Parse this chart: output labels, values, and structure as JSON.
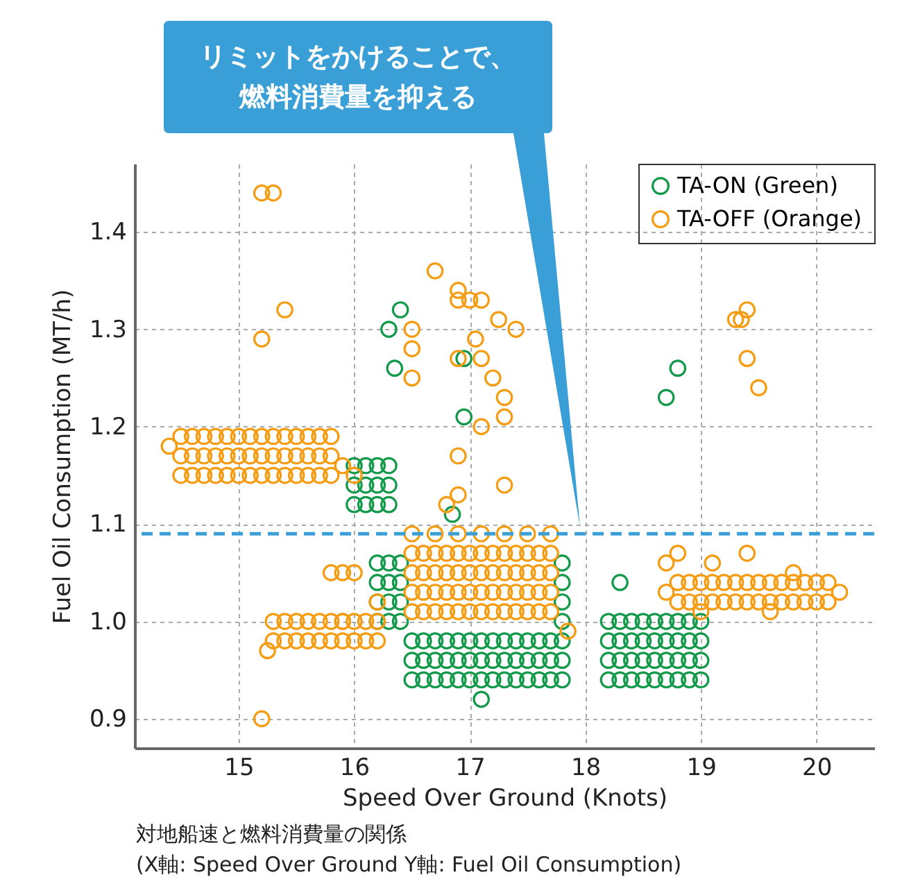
{
  "chart_data": {
    "type": "scatter",
    "xlabel": "Speed Over Ground (Knots)",
    "ylabel": "Fuel Oil Consumption (MT/h)",
    "annotations": [
      "リミットをかけることで、",
      "燃料消費量を抑える",
      "対地船速と燃料消費量の関係",
      "(X軸: Speed Over Ground  Y軸: Fuel Oil Consumption)"
    ],
    "xlim": [
      14.1,
      20.5
    ],
    "ylim": [
      0.87,
      1.47
    ],
    "xticks": [
      15,
      16,
      17,
      18,
      19,
      20
    ],
    "yticks": [
      0.9,
      {
        "value": 1,
        "label": "1.0"
      },
      1.1,
      1.2,
      1.3,
      1.4
    ],
    "grid": true,
    "legend": "top right",
    "marker": "circle",
    "ref_lines": [
      {
        "axis": "y",
        "value": 1.09,
        "color": "#3a9fd6",
        "line_style": "dashed"
      }
    ],
    "series": [
      {
        "name": "TA-ON (Green)",
        "color": "#12994a",
        "x": [
          16.0,
          16.1,
          16.2,
          16.3,
          16.0,
          16.1,
          16.2,
          16.3,
          16.0,
          16.1,
          16.2,
          16.3,
          16.5,
          16.6,
          16.7,
          16.8,
          16.9,
          17.0,
          17.1,
          17.2,
          17.3,
          17.4,
          17.5,
          17.6,
          17.7,
          17.8,
          16.5,
          16.6,
          16.7,
          16.8,
          16.9,
          17.0,
          17.1,
          17.2,
          17.3,
          17.4,
          17.5,
          17.6,
          17.7,
          17.8,
          16.5,
          16.6,
          16.7,
          16.8,
          16.9,
          17.0,
          17.1,
          17.2,
          17.3,
          17.4,
          17.5,
          17.6,
          17.7,
          17.8,
          16.2,
          16.3,
          16.4,
          16.2,
          16.3,
          16.4,
          16.2,
          16.3,
          16.4,
          16.2,
          16.3,
          16.4,
          17.8,
          17.8,
          17.8,
          17.8,
          18.2,
          18.3,
          18.4,
          18.5,
          18.6,
          18.7,
          18.8,
          18.9,
          19.0,
          18.2,
          18.3,
          18.4,
          18.5,
          18.6,
          18.7,
          18.8,
          18.9,
          19.0,
          18.2,
          18.3,
          18.4,
          18.5,
          18.6,
          18.7,
          18.8,
          18.9,
          19.0,
          18.2,
          18.3,
          18.4,
          18.5,
          18.6,
          18.7,
          18.8,
          18.9,
          19.0,
          16.3,
          16.4,
          16.35,
          16.95,
          16.95,
          16.85,
          18.7,
          18.8,
          18.3,
          17.1
        ],
        "values": [
          1.12,
          1.12,
          1.12,
          1.12,
          1.14,
          1.14,
          1.14,
          1.14,
          1.16,
          1.16,
          1.16,
          1.16,
          0.94,
          0.94,
          0.94,
          0.94,
          0.94,
          0.94,
          0.94,
          0.94,
          0.94,
          0.94,
          0.94,
          0.94,
          0.94,
          0.94,
          0.96,
          0.96,
          0.96,
          0.96,
          0.96,
          0.96,
          0.96,
          0.96,
          0.96,
          0.96,
          0.96,
          0.96,
          0.96,
          0.96,
          0.98,
          0.98,
          0.98,
          0.98,
          0.98,
          0.98,
          0.98,
          0.98,
          0.98,
          0.98,
          0.98,
          0.98,
          0.98,
          0.98,
          1.0,
          1.0,
          1.0,
          1.02,
          1.02,
          1.02,
          1.04,
          1.04,
          1.04,
          1.06,
          1.06,
          1.06,
          1.0,
          1.02,
          1.04,
          1.06,
          0.94,
          0.94,
          0.94,
          0.94,
          0.94,
          0.94,
          0.94,
          0.94,
          0.94,
          0.96,
          0.96,
          0.96,
          0.96,
          0.96,
          0.96,
          0.96,
          0.96,
          0.96,
          0.98,
          0.98,
          0.98,
          0.98,
          0.98,
          0.98,
          0.98,
          0.98,
          0.98,
          1.0,
          1.0,
          1.0,
          1.0,
          1.0,
          1.0,
          1.0,
          1.0,
          1.0,
          1.3,
          1.32,
          1.26,
          1.27,
          1.21,
          1.11,
          1.23,
          1.26,
          1.04,
          0.92
        ]
      },
      {
        "name": "TA-OFF (Orange)",
        "color": "#f59c12",
        "x": [
          14.5,
          14.6,
          14.7,
          14.8,
          14.9,
          15.0,
          15.1,
          15.2,
          15.3,
          15.4,
          15.5,
          15.6,
          15.7,
          15.8,
          14.5,
          14.6,
          14.7,
          14.8,
          14.9,
          15.0,
          15.1,
          15.2,
          15.3,
          15.4,
          15.5,
          15.6,
          15.7,
          15.8,
          14.5,
          14.6,
          14.7,
          14.8,
          14.9,
          15.0,
          15.1,
          15.2,
          15.3,
          15.4,
          15.5,
          15.6,
          15.7,
          15.8,
          14.4,
          15.9,
          16.0,
          15.3,
          15.4,
          15.5,
          15.6,
          15.7,
          15.8,
          15.9,
          16.0,
          16.1,
          16.2,
          15.3,
          15.4,
          15.5,
          15.6,
          15.7,
          15.8,
          15.9,
          16.0,
          16.1,
          16.2,
          15.25,
          16.5,
          16.6,
          16.7,
          16.8,
          16.9,
          17.0,
          17.1,
          17.2,
          17.3,
          17.4,
          17.5,
          17.6,
          17.7,
          16.5,
          16.6,
          16.7,
          16.8,
          16.9,
          17.0,
          17.1,
          17.2,
          17.3,
          17.4,
          17.5,
          17.6,
          17.7,
          16.5,
          16.6,
          16.7,
          16.8,
          16.9,
          17.0,
          17.1,
          17.2,
          17.3,
          17.4,
          17.5,
          17.6,
          17.7,
          16.5,
          16.6,
          16.7,
          16.8,
          16.9,
          17.0,
          17.1,
          17.2,
          17.3,
          17.4,
          17.5,
          17.6,
          17.7,
          16.5,
          16.7,
          16.9,
          17.1,
          17.3,
          17.5,
          17.7,
          18.8,
          18.9,
          19.0,
          19.1,
          19.2,
          19.3,
          19.4,
          19.5,
          19.6,
          19.7,
          19.8,
          19.9,
          20.0,
          20.1,
          18.8,
          18.9,
          19.0,
          19.1,
          19.2,
          19.3,
          19.4,
          19.5,
          19.6,
          19.7,
          19.8,
          19.9,
          20.0,
          20.1,
          18.7,
          20.2,
          19.0,
          19.6,
          19.8,
          15.2,
          15.3,
          15.4,
          15.2,
          15.2,
          16.7,
          16.9,
          16.9,
          17.0,
          17.1,
          17.25,
          17.4,
          16.5,
          16.5,
          16.5,
          16.9,
          17.05,
          17.1,
          17.2,
          17.3,
          17.3,
          16.9,
          17.1,
          16.8,
          16.9,
          17.3,
          19.4,
          19.35,
          19.3,
          19.4,
          19.5,
          18.7,
          18.8,
          19.1,
          19.4,
          17.85,
          15.8,
          15.9,
          16.0,
          15.9,
          16.2
        ],
        "values": [
          1.15,
          1.15,
          1.15,
          1.15,
          1.15,
          1.15,
          1.15,
          1.15,
          1.15,
          1.15,
          1.15,
          1.15,
          1.15,
          1.15,
          1.17,
          1.17,
          1.17,
          1.17,
          1.17,
          1.17,
          1.17,
          1.17,
          1.17,
          1.17,
          1.17,
          1.17,
          1.17,
          1.17,
          1.19,
          1.19,
          1.19,
          1.19,
          1.19,
          1.19,
          1.19,
          1.19,
          1.19,
          1.19,
          1.19,
          1.19,
          1.19,
          1.19,
          1.18,
          1.16,
          1.15,
          0.98,
          0.98,
          0.98,
          0.98,
          0.98,
          0.98,
          0.98,
          0.98,
          0.98,
          0.98,
          1.0,
          1.0,
          1.0,
          1.0,
          1.0,
          1.0,
          1.0,
          1.0,
          1.0,
          1.0,
          0.97,
          1.01,
          1.01,
          1.01,
          1.01,
          1.01,
          1.01,
          1.01,
          1.01,
          1.01,
          1.01,
          1.01,
          1.01,
          1.01,
          1.03,
          1.03,
          1.03,
          1.03,
          1.03,
          1.03,
          1.03,
          1.03,
          1.03,
          1.03,
          1.03,
          1.03,
          1.03,
          1.05,
          1.05,
          1.05,
          1.05,
          1.05,
          1.05,
          1.05,
          1.05,
          1.05,
          1.05,
          1.05,
          1.05,
          1.05,
          1.07,
          1.07,
          1.07,
          1.07,
          1.07,
          1.07,
          1.07,
          1.07,
          1.07,
          1.07,
          1.07,
          1.07,
          1.07,
          1.09,
          1.09,
          1.09,
          1.09,
          1.09,
          1.09,
          1.09,
          1.02,
          1.02,
          1.02,
          1.02,
          1.02,
          1.02,
          1.02,
          1.02,
          1.02,
          1.02,
          1.02,
          1.02,
          1.02,
          1.02,
          1.04,
          1.04,
          1.04,
          1.04,
          1.04,
          1.04,
          1.04,
          1.04,
          1.04,
          1.04,
          1.04,
          1.04,
          1.04,
          1.04,
          1.03,
          1.03,
          1.01,
          1.01,
          1.05,
          1.44,
          1.44,
          1.32,
          1.29,
          0.9,
          1.36,
          1.34,
          1.33,
          1.33,
          1.33,
          1.31,
          1.3,
          1.3,
          1.28,
          1.25,
          1.27,
          1.29,
          1.27,
          1.25,
          1.23,
          1.21,
          1.17,
          1.2,
          1.12,
          1.13,
          1.14,
          1.32,
          1.31,
          1.31,
          1.27,
          1.24,
          1.06,
          1.07,
          1.06,
          1.07,
          0.99,
          1.05,
          1.05,
          1.05,
          1.0,
          1.02
        ]
      }
    ]
  }
}
